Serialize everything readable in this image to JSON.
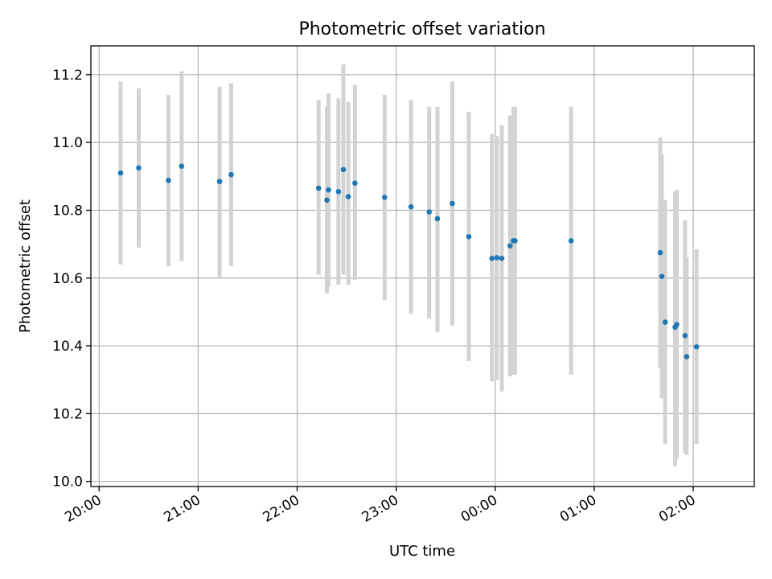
{
  "chart_data": {
    "type": "scatter",
    "title": "Photometric offset variation",
    "xlabel": "UTC time",
    "ylabel": "Photometric offset",
    "x_ticks": [
      "20:00",
      "21:00",
      "22:00",
      "23:00",
      "00:00",
      "01:00",
      "02:00"
    ],
    "y_ticks": [
      "10.0",
      "10.2",
      "10.4",
      "10.6",
      "10.8",
      "11.0",
      "11.2"
    ],
    "xlim": [
      "19:55",
      "02:37"
    ],
    "ylim": [
      9.985,
      11.285
    ],
    "grid": true,
    "colors": {
      "point": "#1f77b4",
      "errorbar": "#d3d3d3",
      "grid": "#b0b0b0"
    },
    "points": [
      {
        "time": "20:13",
        "y": 10.91,
        "ylow": 10.64,
        "yhigh": 11.18
      },
      {
        "time": "20:24",
        "y": 10.925,
        "ylow": 10.69,
        "yhigh": 11.16
      },
      {
        "time": "20:42",
        "y": 10.888,
        "ylow": 10.635,
        "yhigh": 11.14
      },
      {
        "time": "20:50",
        "y": 10.93,
        "ylow": 10.65,
        "yhigh": 11.21
      },
      {
        "time": "21:13",
        "y": 10.885,
        "ylow": 10.6,
        "yhigh": 11.165
      },
      {
        "time": "21:20",
        "y": 10.905,
        "ylow": 10.635,
        "yhigh": 11.175
      },
      {
        "time": "22:13",
        "y": 10.865,
        "ylow": 10.61,
        "yhigh": 11.125
      },
      {
        "time": "22:18",
        "y": 10.83,
        "ylow": 10.555,
        "yhigh": 11.105
      },
      {
        "time": "22:19",
        "y": 10.86,
        "ylow": 10.575,
        "yhigh": 11.145
      },
      {
        "time": "22:25",
        "y": 10.855,
        "ylow": 10.58,
        "yhigh": 11.13
      },
      {
        "time": "22:28",
        "y": 10.92,
        "ylow": 10.61,
        "yhigh": 11.23
      },
      {
        "time": "22:31",
        "y": 10.84,
        "ylow": 10.58,
        "yhigh": 11.12
      },
      {
        "time": "22:35",
        "y": 10.88,
        "ylow": 10.595,
        "yhigh": 11.17
      },
      {
        "time": "22:53",
        "y": 10.838,
        "ylow": 10.535,
        "yhigh": 11.14
      },
      {
        "time": "23:09",
        "y": 10.81,
        "ylow": 10.495,
        "yhigh": 11.125
      },
      {
        "time": "23:20",
        "y": 10.795,
        "ylow": 10.48,
        "yhigh": 11.105
      },
      {
        "time": "23:25",
        "y": 10.775,
        "ylow": 10.44,
        "yhigh": 11.105
      },
      {
        "time": "23:34",
        "y": 10.82,
        "ylow": 10.46,
        "yhigh": 11.18
      },
      {
        "time": "23:44",
        "y": 10.722,
        "ylow": 10.355,
        "yhigh": 11.09
      },
      {
        "time": "23:58",
        "y": 10.658,
        "ylow": 10.295,
        "yhigh": 11.025
      },
      {
        "time": "00:01",
        "y": 10.66,
        "ylow": 10.3,
        "yhigh": 11.02
      },
      {
        "time": "00:04",
        "y": 10.658,
        "ylow": 10.265,
        "yhigh": 11.05
      },
      {
        "time": "00:09",
        "y": 10.695,
        "ylow": 10.31,
        "yhigh": 11.08
      },
      {
        "time": "00:11",
        "y": 10.71,
        "ylow": 10.315,
        "yhigh": 11.105
      },
      {
        "time": "00:12",
        "y": 10.71,
        "ylow": 10.315,
        "yhigh": 11.105
      },
      {
        "time": "00:46",
        "y": 10.71,
        "ylow": 10.315,
        "yhigh": 11.105
      },
      {
        "time": "01:40",
        "y": 10.675,
        "ylow": 10.335,
        "yhigh": 11.015
      },
      {
        "time": "01:41",
        "y": 10.605,
        "ylow": 10.245,
        "yhigh": 10.965
      },
      {
        "time": "01:43",
        "y": 10.47,
        "ylow": 10.11,
        "yhigh": 10.83
      },
      {
        "time": "01:49",
        "y": 10.455,
        "ylow": 10.045,
        "yhigh": 10.855
      },
      {
        "time": "01:50",
        "y": 10.463,
        "ylow": 10.065,
        "yhigh": 10.86
      },
      {
        "time": "01:55",
        "y": 10.43,
        "ylow": 10.085,
        "yhigh": 10.77
      },
      {
        "time": "01:56",
        "y": 10.368,
        "ylow": 10.078,
        "yhigh": 10.66
      },
      {
        "time": "02:02",
        "y": 10.397,
        "ylow": 10.11,
        "yhigh": 10.685
      }
    ]
  }
}
